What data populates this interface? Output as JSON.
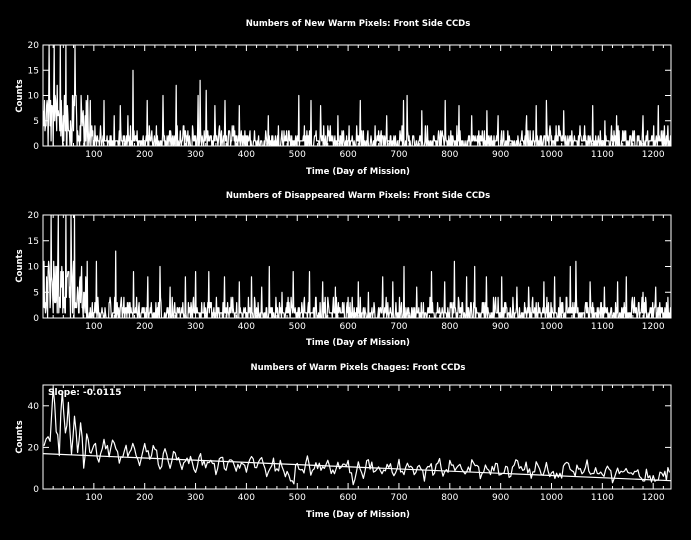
{
  "chart_data": [
    {
      "type": "line",
      "title": "Numbers of New Warm Pixels: Front Side CCDs",
      "xlabel": "Time (Day of Mission)",
      "ylabel": "Counts",
      "xlim": [
        0,
        1235
      ],
      "ylim": [
        0,
        20
      ],
      "x_ticks": [
        100,
        200,
        300,
        400,
        500,
        600,
        700,
        800,
        900,
        1000,
        1100,
        1200
      ],
      "y_ticks": [
        0,
        5,
        10,
        15,
        20
      ],
      "grid": false,
      "series": [
        {
          "color": "#ffffff",
          "peaks": [
            {
              "x": 5,
              "y": 4
            },
            {
              "x": 12,
              "y": 20
            },
            {
              "x": 18,
              "y": 8
            },
            {
              "x": 22,
              "y": 20
            },
            {
              "x": 28,
              "y": 12
            },
            {
              "x": 34,
              "y": 20
            },
            {
              "x": 40,
              "y": 6
            },
            {
              "x": 45,
              "y": 20
            },
            {
              "x": 52,
              "y": 3
            },
            {
              "x": 58,
              "y": 10
            },
            {
              "x": 63,
              "y": 20
            },
            {
              "x": 70,
              "y": 2
            },
            {
              "x": 76,
              "y": 7
            },
            {
              "x": 85,
              "y": 9
            },
            {
              "x": 93,
              "y": 9
            },
            {
              "x": 120,
              "y": 9
            },
            {
              "x": 140,
              "y": 6
            },
            {
              "x": 152,
              "y": 8
            },
            {
              "x": 167,
              "y": 6
            },
            {
              "x": 177,
              "y": 15
            },
            {
              "x": 205,
              "y": 9
            },
            {
              "x": 236,
              "y": 10
            },
            {
              "x": 262,
              "y": 12
            },
            {
              "x": 305,
              "y": 10
            },
            {
              "x": 309,
              "y": 13
            },
            {
              "x": 321,
              "y": 11
            },
            {
              "x": 338,
              "y": 8
            },
            {
              "x": 358,
              "y": 9
            },
            {
              "x": 386,
              "y": 8
            },
            {
              "x": 443,
              "y": 6
            },
            {
              "x": 503,
              "y": 10
            },
            {
              "x": 527,
              "y": 9
            },
            {
              "x": 546,
              "y": 8
            },
            {
              "x": 580,
              "y": 6
            },
            {
              "x": 624,
              "y": 9
            },
            {
              "x": 676,
              "y": 6
            },
            {
              "x": 709,
              "y": 9
            },
            {
              "x": 716,
              "y": 10
            },
            {
              "x": 745,
              "y": 7
            },
            {
              "x": 791,
              "y": 9
            },
            {
              "x": 818,
              "y": 8
            },
            {
              "x": 843,
              "y": 6
            },
            {
              "x": 873,
              "y": 7
            },
            {
              "x": 895,
              "y": 6
            },
            {
              "x": 951,
              "y": 6
            },
            {
              "x": 970,
              "y": 8
            },
            {
              "x": 990,
              "y": 9
            },
            {
              "x": 1024,
              "y": 7
            },
            {
              "x": 1081,
              "y": 8
            },
            {
              "x": 1105,
              "y": 5
            },
            {
              "x": 1128,
              "y": 6
            },
            {
              "x": 1180,
              "y": 6
            },
            {
              "x": 1210,
              "y": 8
            }
          ]
        }
      ]
    },
    {
      "type": "line",
      "title": "Numbers of Disappeared Warm Pixels: Front Side CCDs",
      "xlabel": "Time (Day of Mission)",
      "ylabel": "Counts",
      "xlim": [
        0,
        1235
      ],
      "ylim": [
        0,
        20
      ],
      "x_ticks": [
        100,
        200,
        300,
        400,
        500,
        600,
        700,
        800,
        900,
        1000,
        1100,
        1200
      ],
      "y_ticks": [
        0,
        5,
        10,
        15,
        20
      ],
      "grid": false,
      "series": [
        {
          "color": "#ffffff",
          "peaks": [
            {
              "x": 8,
              "y": 5
            },
            {
              "x": 16,
              "y": 20
            },
            {
              "x": 24,
              "y": 10
            },
            {
              "x": 30,
              "y": 20
            },
            {
              "x": 38,
              "y": 8
            },
            {
              "x": 45,
              "y": 20
            },
            {
              "x": 55,
              "y": 20
            },
            {
              "x": 62,
              "y": 20
            },
            {
              "x": 72,
              "y": 7
            },
            {
              "x": 80,
              "y": 5
            },
            {
              "x": 105,
              "y": 11
            },
            {
              "x": 143,
              "y": 13
            },
            {
              "x": 178,
              "y": 9
            },
            {
              "x": 206,
              "y": 8
            },
            {
              "x": 230,
              "y": 10
            },
            {
              "x": 250,
              "y": 6
            },
            {
              "x": 280,
              "y": 8
            },
            {
              "x": 300,
              "y": 9
            },
            {
              "x": 326,
              "y": 9
            },
            {
              "x": 357,
              "y": 8
            },
            {
              "x": 386,
              "y": 7
            },
            {
              "x": 410,
              "y": 8
            },
            {
              "x": 430,
              "y": 6
            },
            {
              "x": 445,
              "y": 10
            },
            {
              "x": 470,
              "y": 5
            },
            {
              "x": 492,
              "y": 9
            },
            {
              "x": 524,
              "y": 9
            },
            {
              "x": 550,
              "y": 7
            },
            {
              "x": 575,
              "y": 6
            },
            {
              "x": 600,
              "y": 4
            },
            {
              "x": 620,
              "y": 7
            },
            {
              "x": 640,
              "y": 5
            },
            {
              "x": 668,
              "y": 8
            },
            {
              "x": 688,
              "y": 7
            },
            {
              "x": 710,
              "y": 10
            },
            {
              "x": 735,
              "y": 6
            },
            {
              "x": 764,
              "y": 9
            },
            {
              "x": 790,
              "y": 7
            },
            {
              "x": 809,
              "y": 11
            },
            {
              "x": 833,
              "y": 8
            },
            {
              "x": 849,
              "y": 10
            },
            {
              "x": 872,
              "y": 8
            },
            {
              "x": 902,
              "y": 8
            },
            {
              "x": 932,
              "y": 6
            },
            {
              "x": 955,
              "y": 6
            },
            {
              "x": 985,
              "y": 7
            },
            {
              "x": 1006,
              "y": 8
            },
            {
              "x": 1037,
              "y": 10
            },
            {
              "x": 1048,
              "y": 11
            },
            {
              "x": 1076,
              "y": 7
            },
            {
              "x": 1104,
              "y": 6
            },
            {
              "x": 1130,
              "y": 7
            },
            {
              "x": 1147,
              "y": 8
            },
            {
              "x": 1180,
              "y": 5
            },
            {
              "x": 1205,
              "y": 6
            }
          ]
        }
      ]
    },
    {
      "type": "line",
      "title": "Numbers of Warm Pixels Chages: Front CCDs",
      "xlabel": "Time (Day of Mission)",
      "ylabel": "Counts",
      "annotation": "Slope: -0.0115",
      "xlim": [
        0,
        1235
      ],
      "ylim": [
        0,
        50
      ],
      "x_ticks": [
        100,
        200,
        300,
        400,
        500,
        600,
        700,
        800,
        900,
        1000,
        1100,
        1200
      ],
      "y_ticks": [
        0,
        20,
        40
      ],
      "grid": false,
      "series": [
        {
          "color": "#ffffff",
          "points": [
            {
              "x": 2,
              "y": 20
            },
            {
              "x": 6,
              "y": 25
            },
            {
              "x": 10,
              "y": 27
            },
            {
              "x": 14,
              "y": 22
            },
            {
              "x": 20,
              "y": 50
            },
            {
              "x": 26,
              "y": 30
            },
            {
              "x": 32,
              "y": 18
            },
            {
              "x": 38,
              "y": 50
            },
            {
              "x": 44,
              "y": 25
            },
            {
              "x": 50,
              "y": 40
            },
            {
              "x": 56,
              "y": 15
            },
            {
              "x": 62,
              "y": 35
            },
            {
              "x": 68,
              "y": 20
            },
            {
              "x": 74,
              "y": 32
            },
            {
              "x": 80,
              "y": 12
            },
            {
              "x": 86,
              "y": 26
            },
            {
              "x": 92,
              "y": 18
            },
            {
              "x": 100,
              "y": 22
            },
            {
              "x": 110,
              "y": 14
            },
            {
              "x": 120,
              "y": 21
            },
            {
              "x": 130,
              "y": 17
            },
            {
              "x": 140,
              "y": 24
            },
            {
              "x": 150,
              "y": 13
            },
            {
              "x": 160,
              "y": 20
            },
            {
              "x": 170,
              "y": 16
            },
            {
              "x": 180,
              "y": 22
            },
            {
              "x": 190,
              "y": 11
            },
            {
              "x": 200,
              "y": 19
            },
            {
              "x": 210,
              "y": 14
            },
            {
              "x": 220,
              "y": 20
            },
            {
              "x": 230,
              "y": 9
            },
            {
              "x": 240,
              "y": 18
            },
            {
              "x": 250,
              "y": 12
            },
            {
              "x": 260,
              "y": 17
            },
            {
              "x": 270,
              "y": 10
            },
            {
              "x": 280,
              "y": 16
            },
            {
              "x": 290,
              "y": 13
            },
            {
              "x": 300,
              "y": 5
            },
            {
              "x": 310,
              "y": 16
            },
            {
              "x": 320,
              "y": 10
            },
            {
              "x": 330,
              "y": 15
            },
            {
              "x": 340,
              "y": 8
            },
            {
              "x": 350,
              "y": 14
            },
            {
              "x": 360,
              "y": 10
            },
            {
              "x": 370,
              "y": 16
            },
            {
              "x": 380,
              "y": 7
            },
            {
              "x": 390,
              "y": 13
            },
            {
              "x": 400,
              "y": 9
            },
            {
              "x": 410,
              "y": 15
            },
            {
              "x": 420,
              "y": 11
            },
            {
              "x": 430,
              "y": 13
            },
            {
              "x": 440,
              "y": 8
            },
            {
              "x": 450,
              "y": 14
            },
            {
              "x": 460,
              "y": 10
            },
            {
              "x": 470,
              "y": 12
            },
            {
              "x": 480,
              "y": 7
            },
            {
              "x": 490,
              "y": 2
            },
            {
              "x": 500,
              "y": 12
            },
            {
              "x": 510,
              "y": 9
            },
            {
              "x": 520,
              "y": 14
            },
            {
              "x": 530,
              "y": 6
            },
            {
              "x": 540,
              "y": 12
            },
            {
              "x": 550,
              "y": 9
            },
            {
              "x": 560,
              "y": 13
            },
            {
              "x": 570,
              "y": 8
            },
            {
              "x": 580,
              "y": 11
            },
            {
              "x": 590,
              "y": 9
            },
            {
              "x": 600,
              "y": 13
            },
            {
              "x": 610,
              "y": 3
            },
            {
              "x": 620,
              "y": 11
            },
            {
              "x": 630,
              "y": 8
            },
            {
              "x": 640,
              "y": 12
            },
            {
              "x": 650,
              "y": 9
            },
            {
              "x": 660,
              "y": 10
            },
            {
              "x": 670,
              "y": 7
            },
            {
              "x": 680,
              "y": 11
            },
            {
              "x": 690,
              "y": 8
            },
            {
              "x": 700,
              "y": 13
            },
            {
              "x": 710,
              "y": 6
            },
            {
              "x": 720,
              "y": 12
            },
            {
              "x": 730,
              "y": 8
            },
            {
              "x": 740,
              "y": 11
            },
            {
              "x": 750,
              "y": 5
            },
            {
              "x": 760,
              "y": 10
            },
            {
              "x": 770,
              "y": 8
            },
            {
              "x": 780,
              "y": 12
            },
            {
              "x": 790,
              "y": 7
            },
            {
              "x": 800,
              "y": 11
            },
            {
              "x": 810,
              "y": 8
            },
            {
              "x": 820,
              "y": 13
            },
            {
              "x": 830,
              "y": 6
            },
            {
              "x": 840,
              "y": 10
            },
            {
              "x": 850,
              "y": 14
            },
            {
              "x": 860,
              "y": 7
            },
            {
              "x": 870,
              "y": 11
            },
            {
              "x": 880,
              "y": 8
            },
            {
              "x": 890,
              "y": 12
            },
            {
              "x": 900,
              "y": 5
            },
            {
              "x": 910,
              "y": 10
            },
            {
              "x": 920,
              "y": 7
            },
            {
              "x": 930,
              "y": 12
            },
            {
              "x": 940,
              "y": 8
            },
            {
              "x": 950,
              "y": 10
            },
            {
              "x": 960,
              "y": 6
            },
            {
              "x": 970,
              "y": 11
            },
            {
              "x": 980,
              "y": 8
            },
            {
              "x": 990,
              "y": 10
            },
            {
              "x": 1000,
              "y": 5
            },
            {
              "x": 1010,
              "y": 9
            },
            {
              "x": 1020,
              "y": 7
            },
            {
              "x": 1030,
              "y": 11
            },
            {
              "x": 1040,
              "y": 6
            },
            {
              "x": 1050,
              "y": 10
            },
            {
              "x": 1060,
              "y": 8
            },
            {
              "x": 1070,
              "y": 12
            },
            {
              "x": 1080,
              "y": 5
            },
            {
              "x": 1090,
              "y": 9
            },
            {
              "x": 1100,
              "y": 7
            },
            {
              "x": 1110,
              "y": 10
            },
            {
              "x": 1120,
              "y": 4
            },
            {
              "x": 1130,
              "y": 9
            },
            {
              "x": 1140,
              "y": 7
            },
            {
              "x": 1150,
              "y": 10
            },
            {
              "x": 1160,
              "y": 5
            },
            {
              "x": 1170,
              "y": 9
            },
            {
              "x": 1180,
              "y": 6
            },
            {
              "x": 1190,
              "y": 8
            },
            {
              "x": 1200,
              "y": 4
            },
            {
              "x": 1210,
              "y": 7
            },
            {
              "x": 1220,
              "y": 6
            },
            {
              "x": 1232,
              "y": 8
            }
          ]
        }
      ],
      "fit_line": {
        "start": {
          "x": 0,
          "y": 17
        },
        "end": {
          "x": 1235,
          "y": 4
        }
      }
    }
  ]
}
